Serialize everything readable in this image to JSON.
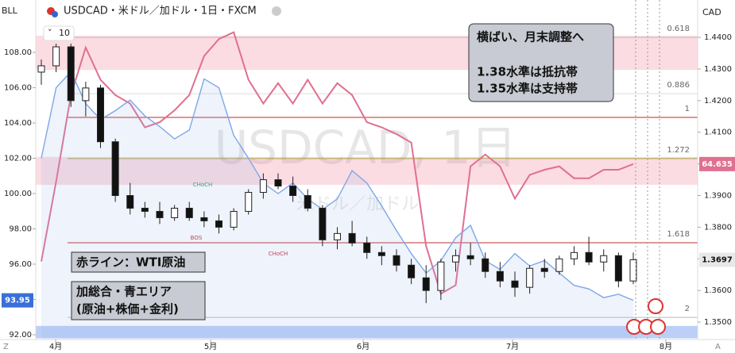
{
  "header": {
    "left_symbol": "BLL",
    "symbol_title": "USDCAD・米ドル／加ドル・1日・FXCM",
    "interval": "10",
    "currency": "CAD",
    "bottom_left": "Z",
    "bottom_right": "A"
  },
  "chart_data": {
    "type": "candlestick",
    "watermark": [
      "USDCAD, 1日",
      "米ドル／加ドル"
    ],
    "xlim": [
      -0.376,
      44.35
    ],
    "xticks": [
      {
        "value": 0.97,
        "label": "4月"
      },
      {
        "value": 11.44,
        "label": "5月"
      },
      {
        "value": 21.75,
        "label": "6月"
      },
      {
        "value": 31.84,
        "label": "7月"
      },
      {
        "value": 42.2,
        "label": "8月"
      }
    ],
    "ylim": [
      91.73,
      110.97
    ],
    "yticks": [
      {
        "value": 92,
        "label": "92.00"
      },
      {
        "value": 94,
        "label": "94.00"
      },
      {
        "value": 96,
        "label": "96.00"
      },
      {
        "value": 98,
        "label": "98.00"
      },
      {
        "value": 100,
        "label": "100.00"
      },
      {
        "value": 102,
        "label": "102.00"
      },
      {
        "value": 104,
        "label": "104.00"
      },
      {
        "value": 106,
        "label": "106.00"
      },
      {
        "value": 108,
        "label": "108.00"
      }
    ],
    "y2lim": [
      1.3445,
      1.4518
    ],
    "y2ticks": [
      {
        "value": 1.35,
        "label": "1.3500"
      },
      {
        "value": 1.36,
        "label": "1.3600"
      },
      {
        "value": 1.37,
        "label": "1.3700"
      },
      {
        "value": 1.38,
        "label": "1.3800"
      },
      {
        "value": 1.39,
        "label": "1.3900"
      },
      {
        "value": 1.4,
        "label": "1.4000"
      },
      {
        "value": 1.41,
        "label": "1.4100"
      },
      {
        "value": 1.42,
        "label": "1.4200"
      },
      {
        "value": 1.43,
        "label": "1.4300"
      },
      {
        "value": 1.44,
        "label": "1.4400"
      }
    ],
    "y3lim": [
      54.3,
      74.3
    ],
    "grid": false,
    "ohlc": {
      "open": [
        1.429,
        1.431,
        1.437,
        1.42,
        1.424,
        1.407,
        1.39,
        1.386,
        1.385,
        1.383,
        1.386,
        1.383,
        1.382,
        1.38,
        1.385,
        1.391,
        1.395,
        1.393,
        1.39,
        1.386,
        1.376,
        1.378,
        1.375,
        1.372,
        1.371,
        1.368,
        1.364,
        1.36,
        1.369,
        1.371,
        1.37,
        1.366,
        1.363,
        1.361,
        1.367,
        1.366,
        1.37,
        1.372,
        1.369,
        1.371,
        1.363
      ],
      "high": [
        1.433,
        1.438,
        1.438,
        1.426,
        1.425,
        1.408,
        1.394,
        1.388,
        1.388,
        1.387,
        1.388,
        1.385,
        1.384,
        1.386,
        1.392,
        1.397,
        1.397,
        1.396,
        1.392,
        1.387,
        1.38,
        1.382,
        1.377,
        1.374,
        1.373,
        1.37,
        1.368,
        1.37,
        1.373,
        1.375,
        1.372,
        1.369,
        1.366,
        1.368,
        1.37,
        1.371,
        1.374,
        1.377,
        1.373,
        1.372,
        1.372
      ],
      "low": [
        1.425,
        1.429,
        1.418,
        1.415,
        1.405,
        1.388,
        1.384,
        1.383,
        1.381,
        1.382,
        1.382,
        1.38,
        1.378,
        1.379,
        1.384,
        1.389,
        1.392,
        1.388,
        1.385,
        1.374,
        1.373,
        1.374,
        1.37,
        1.368,
        1.366,
        1.362,
        1.356,
        1.357,
        1.366,
        1.368,
        1.364,
        1.361,
        1.358,
        1.359,
        1.364,
        1.365,
        1.368,
        1.368,
        1.366,
        1.361,
        1.362
      ],
      "close": [
        1.431,
        1.437,
        1.42,
        1.424,
        1.407,
        1.39,
        1.386,
        1.385,
        1.383,
        1.386,
        1.383,
        1.382,
        1.38,
        1.385,
        1.391,
        1.395,
        1.393,
        1.39,
        1.386,
        1.376,
        1.378,
        1.375,
        1.372,
        1.371,
        1.368,
        1.364,
        1.36,
        1.369,
        1.371,
        1.37,
        1.366,
        1.363,
        1.361,
        1.367,
        1.366,
        1.37,
        1.372,
        1.369,
        1.371,
        1.363,
        1.3697
      ]
    },
    "lines": [
      {
        "color": "#e0708f",
        "axis": "y3",
        "values": [
          58.9,
          63.6,
          68.7,
          71.5,
          69.6,
          68.7,
          68.2,
          66.8,
          67.1,
          67.8,
          68.7,
          71.0,
          72.0,
          72.4,
          69.6,
          68.2,
          69.4,
          68.2,
          69.6,
          68.2,
          69.4,
          68.7,
          67.1,
          66.8,
          66.4,
          65.9,
          59.8,
          57.0,
          57.5,
          64.5,
          65.2,
          64.5,
          62.6,
          64.0,
          64.3,
          64.5,
          63.8,
          63.8,
          64.3,
          64.3,
          64.635
        ]
      },
      {
        "color": "#7ea6e8",
        "axis": "y",
        "fill": "rgba(150,180,235,0.16)",
        "values": [
          102.0,
          106.0,
          106.9,
          105.1,
          104.2,
          104.7,
          105.3,
          104.4,
          103.8,
          103.1,
          103.6,
          106.5,
          106.0,
          103.3,
          102.0,
          100.6,
          100.0,
          100.6,
          99.7,
          99.1,
          99.7,
          101.3,
          100.6,
          99.3,
          97.9,
          96.6,
          95.5,
          96.2,
          97.5,
          98.2,
          96.2,
          95.7,
          96.6,
          95.9,
          96.2,
          95.5,
          94.8,
          94.6,
          94.1,
          94.3,
          93.95
        ]
      }
    ],
    "zones": [
      {
        "axis": "y2",
        "from": 1.4297,
        "to": 1.4405,
        "color": "rgba(240,130,150,0.28)"
      },
      {
        "axis": "y2",
        "from": 1.3934,
        "to": 1.4022,
        "color": "rgba(240,130,150,0.28)"
      },
      {
        "axis": "y",
        "from": 91.8,
        "to": 92.5,
        "color": "rgba(120,160,240,0.5)"
      }
    ],
    "levels": [
      {
        "ratio": 0.618,
        "price": 1.44,
        "color": "#bbbbbb"
      },
      {
        "ratio": 0.886,
        "price": 1.4222,
        "color": "#dddddd"
      },
      {
        "ratio": 1,
        "price": 1.4147,
        "color": "#d02020"
      },
      {
        "ratio": 1.272,
        "price": 1.4017,
        "color": "#a8a040"
      },
      {
        "ratio": 1.618,
        "price": 1.3751,
        "color": "#c03030"
      },
      {
        "ratio": 2,
        "price": 1.3515,
        "color": "#bbbbbb"
      }
    ],
    "structure_labels": [
      {
        "text": "CHoCH",
        "color": "#2a9d6f"
      },
      {
        "text": "BOS",
        "color": "#d03030"
      },
      {
        "text": "CHoCH",
        "color": "#d03030"
      }
    ]
  },
  "annotations": {
    "outlook": [
      "横ばい、月末調整へ",
      "1.38水準は抵抗帯",
      "1.35水準は支持帯"
    ],
    "red_line": "赤ライン：WTI原油",
    "blue_area": [
      "加総合・青エリア",
      "(原油+株価+金利)"
    ]
  }
}
